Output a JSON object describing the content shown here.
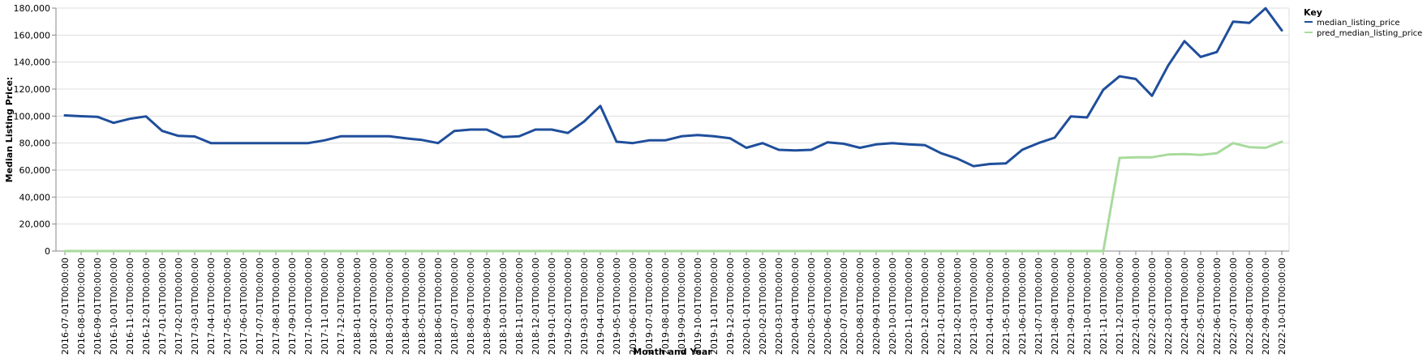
{
  "chart_data": {
    "type": "line",
    "xlabel": "Month and Year",
    "ylabel": "Median Listing Price:",
    "ylim": [
      0,
      180000
    ],
    "yticks": [
      0,
      20000,
      40000,
      60000,
      80000,
      100000,
      120000,
      140000,
      160000,
      180000
    ],
    "ytick_labels": [
      "0",
      "20,000",
      "40,000",
      "60,000",
      "80,000",
      "100,000",
      "120,000",
      "140,000",
      "160,000",
      "180,000"
    ],
    "grid": "horizontal",
    "legend_position": "top-right",
    "legend_title": "Key",
    "x": [
      "2016-07-01T00:00:00",
      "2016-08-01T00:00:00",
      "2016-09-01T00:00:00",
      "2016-10-01T00:00:00",
      "2016-11-01T00:00:00",
      "2016-12-01T00:00:00",
      "2017-01-01T00:00:00",
      "2017-02-01T00:00:00",
      "2017-03-01T00:00:00",
      "2017-04-01T00:00:00",
      "2017-05-01T00:00:00",
      "2017-06-01T00:00:00",
      "2017-07-01T00:00:00",
      "2017-08-01T00:00:00",
      "2017-09-01T00:00:00",
      "2017-10-01T00:00:00",
      "2017-11-01T00:00:00",
      "2017-12-01T00:00:00",
      "2018-01-01T00:00:00",
      "2018-02-01T00:00:00",
      "2018-03-01T00:00:00",
      "2018-04-01T00:00:00",
      "2018-05-01T00:00:00",
      "2018-06-01T00:00:00",
      "2018-07-01T00:00:00",
      "2018-08-01T00:00:00",
      "2018-09-01T00:00:00",
      "2018-10-01T00:00:00",
      "2018-11-01T00:00:00",
      "2018-12-01T00:00:00",
      "2019-01-01T00:00:00",
      "2019-02-01T00:00:00",
      "2019-03-01T00:00:00",
      "2019-04-01T00:00:00",
      "2019-05-01T00:00:00",
      "2019-06-01T00:00:00",
      "2019-07-01T00:00:00",
      "2019-08-01T00:00:00",
      "2019-09-01T00:00:00",
      "2019-10-01T00:00:00",
      "2019-11-01T00:00:00",
      "2019-12-01T00:00:00",
      "2020-01-01T00:00:00",
      "2020-02-01T00:00:00",
      "2020-03-01T00:00:00",
      "2020-04-01T00:00:00",
      "2020-05-01T00:00:00",
      "2020-06-01T00:00:00",
      "2020-07-01T00:00:00",
      "2020-08-01T00:00:00",
      "2020-09-01T00:00:00",
      "2020-10-01T00:00:00",
      "2020-11-01T00:00:00",
      "2020-12-01T00:00:00",
      "2021-01-01T00:00:00",
      "2021-02-01T00:00:00",
      "2021-03-01T00:00:00",
      "2021-04-01T00:00:00",
      "2021-05-01T00:00:00",
      "2021-06-01T00:00:00",
      "2021-07-01T00:00:00",
      "2021-08-01T00:00:00",
      "2021-09-01T00:00:00",
      "2021-10-01T00:00:00",
      "2021-11-01T00:00:00",
      "2021-12-01T00:00:00",
      "2022-01-01T00:00:00",
      "2022-02-01T00:00:00",
      "2022-03-01T00:00:00",
      "2022-04-01T00:00:00",
      "2022-05-01T00:00:00",
      "2022-06-01T00:00:00",
      "2022-07-01T00:00:00",
      "2022-08-01T00:00:00",
      "2022-09-01T00:00:00",
      "2022-10-01T00:00:00"
    ],
    "series": [
      {
        "name": "median_listing_price",
        "color": "#1f4e9b",
        "values": [
          100500,
          99900,
          99500,
          95000,
          98000,
          99800,
          89000,
          85300,
          84900,
          80000,
          80000,
          80000,
          80000,
          80000,
          80000,
          80000,
          82000,
          85000,
          85000,
          85000,
          85000,
          83500,
          82300,
          80000,
          89000,
          90000,
          90000,
          84500,
          85000,
          90000,
          90000,
          87500,
          96000,
          107500,
          81000,
          80000,
          82000,
          82000,
          85000,
          86000,
          85000,
          83500,
          76500,
          80000,
          75000,
          74500,
          75000,
          80500,
          79500,
          76500,
          79000,
          80000,
          79000,
          78500,
          72500,
          68500,
          62900,
          64500,
          65000,
          75000,
          80000,
          84000,
          99800,
          99000,
          119500,
          129500,
          127500,
          115000,
          137500,
          155500,
          143800,
          147500,
          170000,
          169000,
          179900,
          163500
        ]
      },
      {
        "name": "pred_median_listing_price",
        "color": "#a8db9d",
        "values": [
          0,
          0,
          0,
          0,
          0,
          0,
          0,
          0,
          0,
          0,
          0,
          0,
          0,
          0,
          0,
          0,
          0,
          0,
          0,
          0,
          0,
          0,
          0,
          0,
          0,
          0,
          0,
          0,
          0,
          0,
          0,
          0,
          0,
          0,
          0,
          0,
          0,
          0,
          0,
          0,
          0,
          0,
          0,
          0,
          0,
          0,
          0,
          0,
          0,
          0,
          0,
          0,
          0,
          0,
          0,
          0,
          0,
          0,
          0,
          0,
          0,
          0,
          0,
          0,
          0,
          69000,
          69500,
          69500,
          71500,
          71800,
          71200,
          72500,
          80000,
          77000,
          76500,
          81000
        ]
      }
    ]
  }
}
